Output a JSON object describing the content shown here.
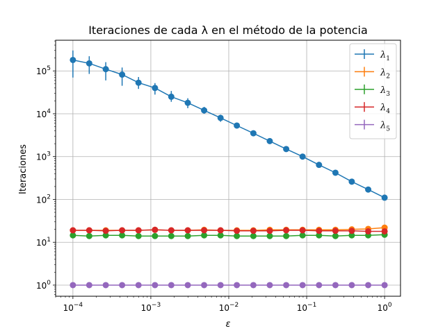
{
  "chart_data": {
    "type": "line",
    "title": "Iteraciones de cada λ en el método de la potencia",
    "xlabel": "ε",
    "ylabel": "Iteraciones",
    "xscale": "log",
    "yscale": "log",
    "xlim": [
      6e-05,
      1.6
    ],
    "ylim": [
      0.55,
      520000
    ],
    "grid": true,
    "legend_position": "top-right",
    "x_ticks": [
      {
        "value": 0.0001,
        "base": "10",
        "exp": "−4"
      },
      {
        "value": 0.001,
        "base": "10",
        "exp": "−3"
      },
      {
        "value": 0.01,
        "base": "10",
        "exp": "−2"
      },
      {
        "value": 0.1,
        "base": "10",
        "exp": "−1"
      },
      {
        "value": 1,
        "base": "10",
        "exp": "0"
      }
    ],
    "y_ticks": [
      {
        "value": 1,
        "base": "10",
        "exp": "0"
      },
      {
        "value": 10,
        "base": "10",
        "exp": "1"
      },
      {
        "value": 100,
        "base": "10",
        "exp": "2"
      },
      {
        "value": 1000,
        "base": "10",
        "exp": "3"
      },
      {
        "value": 10000,
        "base": "10",
        "exp": "4"
      },
      {
        "value": 100000,
        "base": "10",
        "exp": "5"
      }
    ],
    "x": [
      0.0001,
      0.000162,
      0.000264,
      0.000428,
      0.000695,
      0.00113,
      0.00183,
      0.00298,
      0.00483,
      0.00785,
      0.0127,
      0.0207,
      0.0336,
      0.0546,
      0.0886,
      0.144,
      0.234,
      0.379,
      0.616,
      1.0
    ],
    "series": [
      {
        "name": "λ",
        "sub": "1",
        "color": "#1f77b4",
        "values": [
          180000,
          150000,
          110000,
          82000,
          53000,
          40000,
          25000,
          18000,
          12000,
          8000,
          5300,
          3500,
          2300,
          1500,
          1000,
          640,
          420,
          260,
          170,
          110
        ],
        "err_low": [
          70000,
          85000,
          60000,
          45000,
          38000,
          28000,
          19000,
          13500,
          10000,
          6500,
          4600,
          3200,
          2100,
          1450,
          950,
          610,
          400,
          240,
          160,
          95
        ],
        "err_high": [
          300000,
          220000,
          160000,
          120000,
          72000,
          52000,
          34000,
          23000,
          14500,
          9500,
          6200,
          3900,
          2600,
          1600,
          1050,
          680,
          440,
          280,
          180,
          125
        ]
      },
      {
        "name": "λ",
        "sub": "2",
        "color": "#ff7f0e",
        "values": [
          19,
          19,
          19,
          19,
          19,
          19.5,
          19,
          19,
          19.5,
          19,
          19,
          19,
          19.5,
          19.5,
          19.5,
          19.5,
          19.5,
          20,
          20.5,
          22
        ],
        "err_low": [
          18,
          18,
          18,
          18,
          18,
          18.5,
          18,
          18,
          18.5,
          18,
          18,
          18,
          18.5,
          18.5,
          18.5,
          18.5,
          18.5,
          19,
          19.5,
          20
        ],
        "err_high": [
          20,
          20,
          20,
          20,
          20,
          20.5,
          20,
          20,
          20.5,
          20,
          20,
          20,
          20.5,
          20.5,
          20.5,
          20.5,
          20.5,
          21,
          21.5,
          24
        ]
      },
      {
        "name": "λ",
        "sub": "3",
        "color": "#2ca02c",
        "values": [
          14.5,
          14,
          14.5,
          14.5,
          14,
          14,
          14,
          14,
          14.5,
          14.5,
          14,
          14,
          14,
          14,
          14.5,
          14.5,
          14,
          14.5,
          14.5,
          15
        ],
        "err_low": [
          13.5,
          13,
          13.5,
          13.5,
          13,
          13,
          13,
          13,
          13.5,
          13.5,
          13,
          13,
          13,
          13,
          13.5,
          13.5,
          13,
          13.5,
          13.5,
          14
        ],
        "err_high": [
          15.5,
          15,
          15.5,
          15.5,
          15,
          15,
          15,
          15,
          15.5,
          15.5,
          15,
          15,
          15,
          15,
          15.5,
          15.5,
          15,
          15.5,
          15.5,
          16
        ]
      },
      {
        "name": "λ",
        "sub": "4",
        "color": "#d62728",
        "values": [
          19,
          19,
          18.5,
          19,
          19,
          19.5,
          19,
          19,
          19,
          19,
          18.5,
          18.5,
          18.5,
          19,
          19,
          18.5,
          18.5,
          18.5,
          18,
          18
        ],
        "err_low": [
          18,
          18,
          17.5,
          18,
          18,
          18.5,
          18,
          18,
          18,
          18,
          17.5,
          17.5,
          17.5,
          18,
          18,
          17.5,
          17.5,
          17.5,
          17,
          17
        ],
        "err_high": [
          20,
          20,
          19.5,
          20,
          20,
          20.5,
          20,
          20,
          20,
          20,
          19.5,
          19.5,
          19.5,
          20,
          20,
          19.5,
          19.5,
          19.5,
          19,
          19
        ]
      },
      {
        "name": "λ",
        "sub": "5",
        "color": "#9467bd",
        "values": [
          1,
          1,
          1,
          1,
          1,
          1,
          1,
          1,
          1,
          1,
          1,
          1,
          1,
          1,
          1,
          1,
          1,
          1,
          1,
          1
        ],
        "err_low": [
          1,
          1,
          1,
          1,
          1,
          1,
          1,
          1,
          1,
          1,
          1,
          1,
          1,
          1,
          1,
          1,
          1,
          1,
          1,
          1
        ],
        "err_high": [
          1,
          1,
          1,
          1,
          1,
          1,
          1,
          1,
          1,
          1,
          1,
          1,
          1,
          1,
          1,
          1,
          1,
          1,
          1,
          1
        ]
      }
    ]
  }
}
